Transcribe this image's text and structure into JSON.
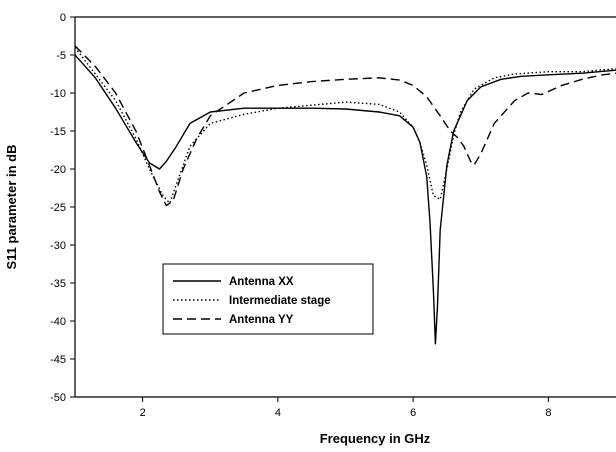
{
  "chart_data": {
    "type": "line",
    "title": "",
    "xlabel": "Frequency in GHz",
    "ylabel": "S11 parameter in dB",
    "xlim": [
      1,
      9
    ],
    "ylim": [
      -50,
      0
    ],
    "xticks": [
      2,
      4,
      6,
      8
    ],
    "yticks": [
      0,
      -5,
      -10,
      -15,
      -20,
      -25,
      -30,
      -35,
      -40,
      -45,
      -50
    ],
    "grid": false,
    "legend_position": "lower-left",
    "series": [
      {
        "name": "Antenna XX",
        "style": "solid",
        "color": "#000000",
        "x": [
          1.0,
          1.3,
          1.6,
          1.9,
          2.1,
          2.25,
          2.35,
          2.5,
          2.7,
          3.0,
          3.5,
          4.0,
          4.5,
          5.0,
          5.5,
          5.8,
          6.0,
          6.1,
          6.2,
          6.25,
          6.3,
          6.33,
          6.36,
          6.4,
          6.5,
          6.6,
          6.8,
          7.0,
          7.3,
          7.6,
          8.0,
          8.5,
          9.0
        ],
        "y": [
          -5.0,
          -8.0,
          -12.0,
          -16.5,
          -19.2,
          -20.0,
          -19.0,
          -17.0,
          -14.0,
          -12.5,
          -12.0,
          -12.0,
          -12.0,
          -12.1,
          -12.5,
          -13.0,
          -14.5,
          -16.5,
          -21.0,
          -27.0,
          -36.0,
          -43.0,
          -38.0,
          -28.0,
          -19.5,
          -15.0,
          -11.0,
          -9.2,
          -8.2,
          -7.8,
          -7.6,
          -7.4,
          -7.0
        ]
      },
      {
        "name": "Intermediate stage",
        "style": "dotted",
        "color": "#000000",
        "x": [
          1.0,
          1.3,
          1.6,
          1.9,
          2.1,
          2.3,
          2.4,
          2.5,
          2.7,
          3.0,
          3.5,
          4.0,
          4.5,
          5.0,
          5.5,
          5.8,
          6.0,
          6.1,
          6.2,
          6.3,
          6.4,
          6.5,
          6.6,
          6.7,
          6.9,
          7.2,
          7.5,
          8.0,
          8.5,
          9.0
        ],
        "y": [
          -4.0,
          -7.5,
          -11.0,
          -16.0,
          -20.0,
          -23.5,
          -24.5,
          -22.0,
          -17.0,
          -14.0,
          -12.8,
          -12.0,
          -11.6,
          -11.2,
          -11.5,
          -12.5,
          -14.5,
          -16.5,
          -19.5,
          -23.5,
          -24.0,
          -20.0,
          -15.5,
          -12.5,
          -9.5,
          -8.0,
          -7.5,
          -7.2,
          -7.2,
          -6.8
        ]
      },
      {
        "name": "Antenna YY",
        "style": "dashed",
        "color": "#000000",
        "x": [
          1.0,
          1.3,
          1.6,
          1.9,
          2.1,
          2.25,
          2.35,
          2.45,
          2.6,
          2.8,
          3.0,
          3.5,
          4.0,
          4.5,
          5.0,
          5.5,
          5.8,
          6.0,
          6.2,
          6.4,
          6.55,
          6.65,
          6.75,
          6.85,
          6.9,
          7.0,
          7.2,
          7.5,
          7.7,
          7.9,
          8.2,
          8.5,
          8.8,
          9.0
        ],
        "y": [
          -3.8,
          -6.5,
          -10.0,
          -15.0,
          -19.5,
          -23.0,
          -24.8,
          -24.2,
          -20.0,
          -16.0,
          -13.0,
          -10.0,
          -9.0,
          -8.5,
          -8.2,
          -8.0,
          -8.3,
          -9.0,
          -10.5,
          -13.0,
          -15.0,
          -15.8,
          -17.0,
          -19.0,
          -19.5,
          -18.0,
          -14.0,
          -11.0,
          -10.0,
          -10.2,
          -9.0,
          -8.2,
          -7.6,
          -7.4
        ]
      }
    ]
  }
}
